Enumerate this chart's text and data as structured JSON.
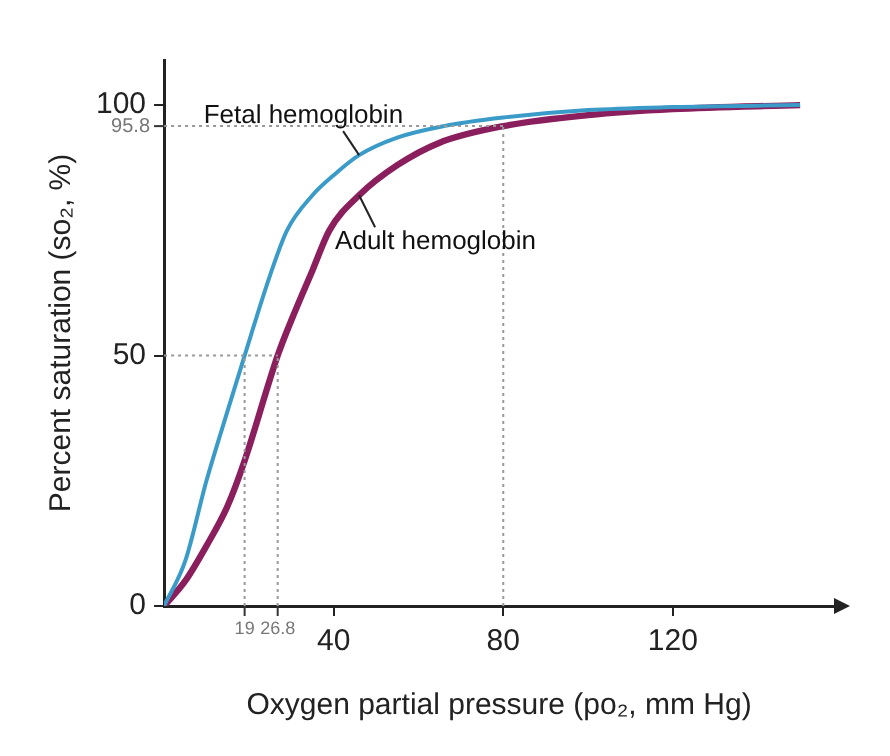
{
  "chart_data": {
    "type": "line",
    "xlabel": "Oxygen partial pressure (po₂, mm Hg)",
    "ylabel": "Percent saturation (so₂, %)",
    "series": [
      {
        "name": "Fetal hemoglobin",
        "color": "#3b9bc8",
        "x": [
          0,
          5,
          10,
          15,
          19,
          25,
          29,
          35,
          40,
          46,
          55,
          66,
          80,
          100,
          120,
          150
        ],
        "values": [
          0,
          9,
          25,
          39,
          50,
          66,
          75,
          82,
          86,
          90,
          93.5,
          95.8,
          97.5,
          99,
          99.6,
          100
        ]
      },
      {
        "name": "Adult hemoglobin",
        "color": "#8b1e5c",
        "x": [
          0,
          5,
          10,
          15,
          19,
          26.8,
          30,
          35,
          39,
          46,
          55,
          65,
          80,
          100,
          120,
          150
        ],
        "values": [
          0,
          5,
          12,
          20,
          29,
          50,
          57,
          67,
          75,
          82,
          88,
          92.5,
          95.8,
          98,
          99.2,
          100
        ]
      }
    ],
    "ref_lines": [
      {
        "axis": "x",
        "value": 19,
        "label": "19",
        "color": "#999999",
        "line_style": "dotted"
      },
      {
        "axis": "x",
        "value": 26.8,
        "label": "26.8",
        "color": "#999999",
        "line_style": "dotted"
      },
      {
        "axis": "x",
        "value": 80,
        "color": "#999999",
        "line_style": "dotted"
      },
      {
        "axis": "y",
        "value": 50,
        "color": "#999999",
        "line_style": "dotted"
      },
      {
        "axis": "y",
        "value": 95.8,
        "label": "95.8",
        "color": "#999999",
        "line_style": "dotted"
      }
    ],
    "xlim": [
      0,
      158
    ],
    "ylim": [
      0,
      109
    ],
    "xticks": [
      40,
      80,
      120
    ],
    "yticks": [
      0,
      50,
      100
    ],
    "grid": false,
    "legend": false,
    "marker": "none",
    "line_style": "solid"
  }
}
